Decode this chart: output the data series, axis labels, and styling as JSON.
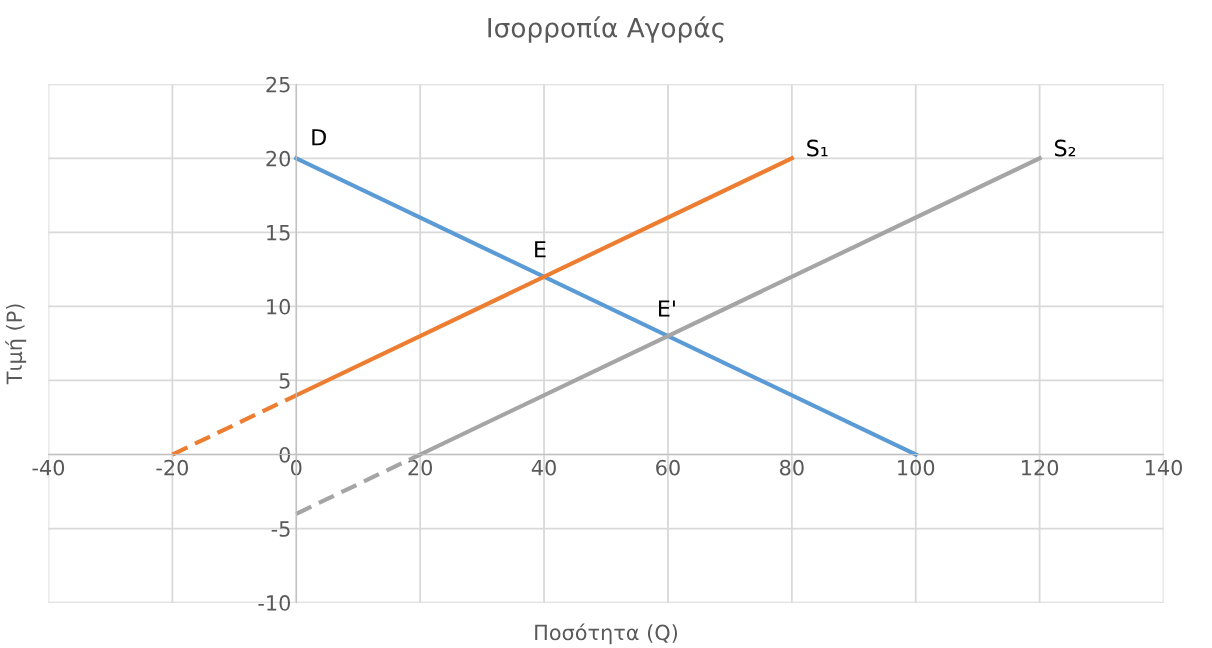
{
  "chart_data": {
    "type": "line",
    "title": "Ισορροπία Αγοράς",
    "xlabel": "Ποσότητα (Q)",
    "ylabel": "Τιμή (P)",
    "xlim": [
      -40,
      140
    ],
    "xticks": [
      -40,
      -20,
      0,
      20,
      40,
      60,
      80,
      100,
      120,
      140
    ],
    "ylim": [
      -10,
      25
    ],
    "yticks": [
      -10,
      -5,
      0,
      5,
      10,
      15,
      20,
      25
    ],
    "grid": true,
    "legend": false,
    "marker": "none",
    "series": [
      {
        "name": "D",
        "color": "#5b9bd5",
        "x": [
          0,
          100
        ],
        "values": [
          20,
          0
        ],
        "line_style": "solid"
      },
      {
        "name": "S₁",
        "color": "#ed7d31",
        "x": [
          0,
          80
        ],
        "values": [
          4,
          20
        ],
        "line_style": "solid"
      },
      {
        "color": "#ed7d31",
        "x": [
          -20,
          0
        ],
        "values": [
          0,
          4
        ],
        "line_style": "dashed"
      },
      {
        "name": "S₂",
        "color": "#a5a5a5",
        "x": [
          20,
          120
        ],
        "values": [
          0,
          20
        ],
        "line_style": "solid"
      },
      {
        "color": "#a5a5a5",
        "x": [
          0,
          20
        ],
        "values": [
          -4,
          0
        ],
        "line_style": "dashed"
      }
    ],
    "annotations": [
      {
        "text": "E",
        "x": 40,
        "y": 12
      },
      {
        "text": "E'",
        "x": 60,
        "y": 8
      }
    ]
  }
}
